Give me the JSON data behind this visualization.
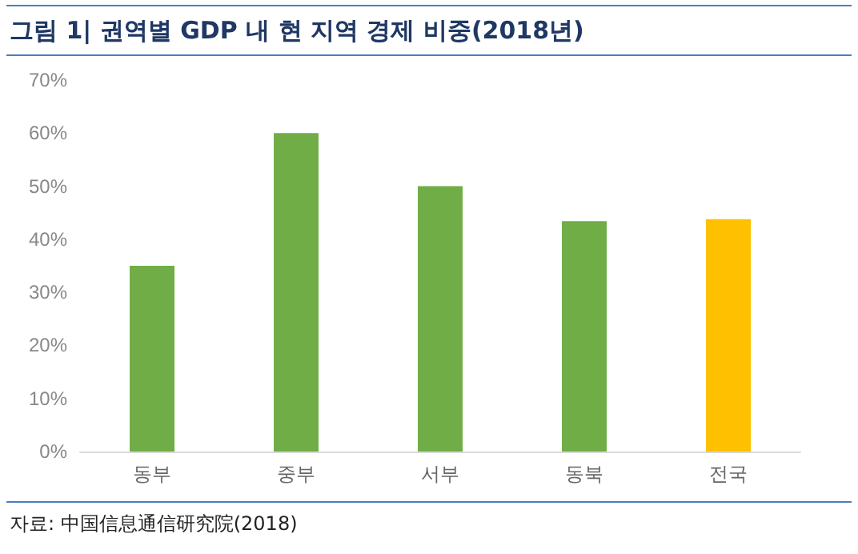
{
  "chart_data": {
    "type": "bar",
    "title": "그림 1| 권역별 GDP 내 현 지역 경제 비중(2018년)",
    "categories": [
      "동부",
      "중부",
      "서부",
      "동북",
      "전국"
    ],
    "values": [
      35,
      60,
      50,
      43.4,
      43.8
    ],
    "colors": [
      "#70ad47",
      "#70ad47",
      "#70ad47",
      "#70ad47",
      "#ffc000"
    ],
    "ylim": [
      0,
      70
    ],
    "yticks": [
      {
        "value": 0,
        "label": "0%"
      },
      {
        "value": 10,
        "label": "10%"
      },
      {
        "value": 20,
        "label": "20%"
      },
      {
        "value": 30,
        "label": "30%"
      },
      {
        "value": 40,
        "label": "40%"
      },
      {
        "value": 50,
        "label": "50%"
      },
      {
        "value": 60,
        "label": "60%"
      },
      {
        "value": 70,
        "label": "70%"
      }
    ],
    "grid": false,
    "annotations": [
      "자료: 中国信息通信研究院(2018)"
    ]
  }
}
